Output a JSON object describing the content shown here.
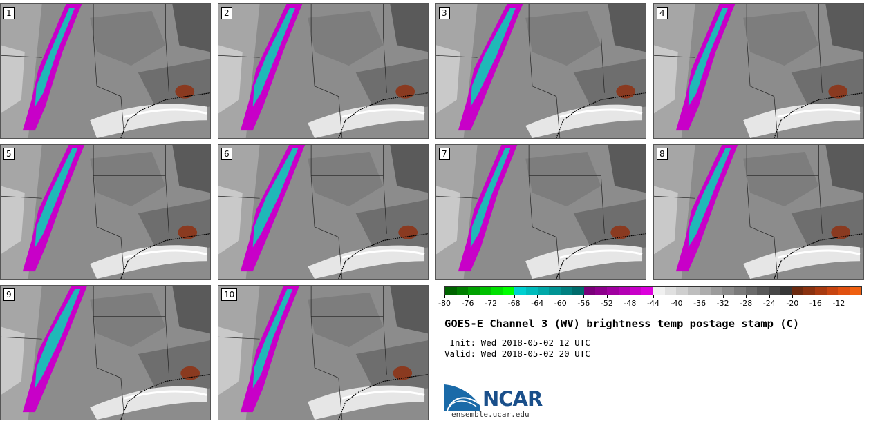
{
  "panels": [
    {
      "label": "1"
    },
    {
      "label": "2"
    },
    {
      "label": "3"
    },
    {
      "label": "4"
    },
    {
      "label": "5"
    },
    {
      "label": "6"
    },
    {
      "label": "7"
    },
    {
      "label": "8"
    },
    {
      "label": "9"
    },
    {
      "label": "10"
    }
  ],
  "colorbar": {
    "ticks": [
      "-80",
      "-76",
      "-72",
      "-68",
      "-64",
      "-60",
      "-56",
      "-52",
      "-48",
      "-44",
      "-40",
      "-36",
      "-32",
      "-28",
      "-24",
      "-20",
      "-16",
      "-12"
    ],
    "colors": [
      "#006400",
      "#007f00",
      "#00a000",
      "#00c000",
      "#00e000",
      "#00ff00",
      "#00d0d0",
      "#00bcbc",
      "#00a8a8",
      "#009494",
      "#008080",
      "#006c6c",
      "#7a007a",
      "#8c008c",
      "#a000a0",
      "#b400b4",
      "#c800c8",
      "#dc00dc",
      "#f0f0f0",
      "#e0e0e0",
      "#cfcfcf",
      "#bebebe",
      "#adadad",
      "#9c9c9c",
      "#8b8b8b",
      "#7a7a7a",
      "#696969",
      "#585858",
      "#474747",
      "#363636",
      "#6b2a10",
      "#8a3210",
      "#a83a10",
      "#c74410",
      "#e05010",
      "#f06010"
    ]
  },
  "title": "GOES-E Channel 3 (WV) brightness temp postage stamp (C)",
  "init": " Init: Wed 2018-05-02 12 UTC",
  "valid": "Valid: Wed 2018-05-02 20 UTC",
  "logo": {
    "text": "NCAR",
    "url": "ensemble.ucar.edu"
  }
}
